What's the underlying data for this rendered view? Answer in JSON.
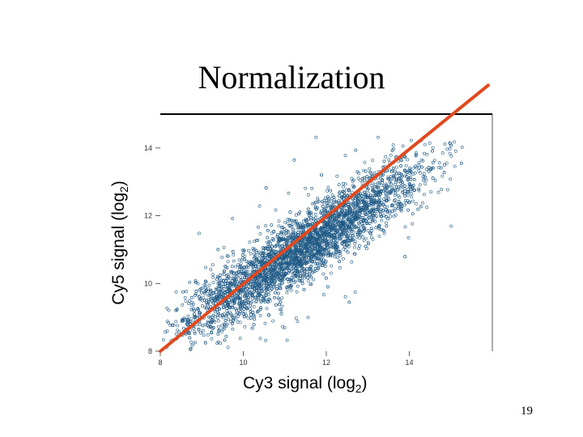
{
  "slide": {
    "title": "Normalization",
    "page_number": "19"
  },
  "chart_data": {
    "type": "scatter",
    "xlabel_main": "Cy3 signal (log",
    "xlabel_sub": "2",
    "xlabel_end": ")",
    "ylabel_main": "Cy5 signal (log",
    "ylabel_sub": "2",
    "ylabel_end": ")",
    "xlim": [
      8,
      16
    ],
    "ylim": [
      8,
      15
    ],
    "x_ticks": [
      8,
      10,
      12,
      14
    ],
    "x_tick_labels": [
      "8",
      "10",
      "12",
      "14"
    ],
    "y_ticks": [
      8,
      10,
      12,
      14
    ],
    "y_tick_labels": [
      "8",
      "10",
      "12",
      "14"
    ],
    "point_color": "#1f5a86",
    "line_color": "#e2481e",
    "fit_line": {
      "x": [
        8.0,
        15.9
      ],
      "y": [
        8.0,
        15.85
      ]
    },
    "cloud": {
      "n": 4200,
      "x_center": 11.4,
      "x_spread": 1.5,
      "slope": 0.78,
      "intercept_at_center": 11.0,
      "noise": 0.5
    }
  }
}
